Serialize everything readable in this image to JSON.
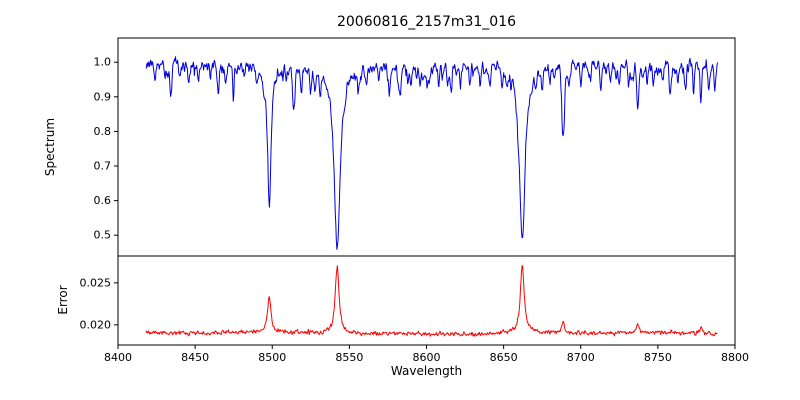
{
  "chart_data": {
    "type": "line",
    "title": "20060816_2157m31_016",
    "xlabel": "Wavelength",
    "grid": false,
    "legend": null,
    "xlim": [
      8400,
      8800
    ],
    "x_ticks": [
      8400,
      8450,
      8500,
      8550,
      8600,
      8650,
      8700,
      8750,
      8800
    ],
    "x_start": 8418,
    "x_end": 8789,
    "x_step": 0.35,
    "noise_seed": 20060816,
    "panels": [
      {
        "name": "spectrum",
        "ylabel": "Spectrum",
        "ylim": [
          0.44,
          1.07
        ],
        "y_ticks": [
          0.5,
          0.6,
          0.7,
          0.8,
          0.9,
          1.0
        ],
        "y_tick_decimals": 1,
        "line_color": "#0000dd",
        "model": {
          "sign": -1,
          "continuum": 0.99,
          "wave": [
            0.004,
            37,
            0.003,
            11.3
          ],
          "noise_sigma": 0.009,
          "micro_lines": {
            "count": 150,
            "max_depth": 0.05,
            "min_width": 0.3,
            "max_width": 0.7
          },
          "lines": [
            [
              8498.0,
              0.36,
              1.5,
              "lor"
            ],
            [
              8542.1,
              0.52,
              2.4,
              "lor"
            ],
            [
              8662.1,
              0.51,
              2.2,
              "lor"
            ],
            [
              8688.6,
              0.21,
              0.9
            ],
            [
              8424,
              0.05,
              0.5
            ],
            [
              8434,
              0.06,
              0.5
            ],
            [
              8440,
              0.035,
              0.45
            ],
            [
              8446,
              0.04,
              0.5
            ],
            [
              8452,
              0.05,
              0.5
            ],
            [
              8465,
              0.09,
              0.6
            ],
            [
              8470,
              0.05,
              0.5
            ],
            [
              8475,
              0.06,
              0.5
            ],
            [
              8482,
              0.035,
              0.45
            ],
            [
              8490,
              0.04,
              0.5
            ],
            [
              8514,
              0.11,
              0.65
            ],
            [
              8519,
              0.05,
              0.5
            ],
            [
              8525,
              0.06,
              0.5
            ],
            [
              8531,
              0.04,
              0.5
            ],
            [
              8556,
              0.045,
              0.5
            ],
            [
              8561,
              0.05,
              0.5
            ],
            [
              8569,
              0.04,
              0.5
            ],
            [
              8576,
              0.06,
              0.55
            ],
            [
              8583,
              0.07,
              0.55
            ],
            [
              8590,
              0.04,
              0.5
            ],
            [
              8596,
              0.05,
              0.5
            ],
            [
              8602,
              0.04,
              0.5
            ],
            [
              8608,
              0.06,
              0.5
            ],
            [
              8616,
              0.08,
              0.6
            ],
            [
              8622,
              0.05,
              0.5
            ],
            [
              8628,
              0.05,
              0.5
            ],
            [
              8635,
              0.04,
              0.5
            ],
            [
              8641,
              0.06,
              0.5
            ],
            [
              8649,
              0.05,
              0.5
            ],
            [
              8675,
              0.06,
              0.55
            ],
            [
              8680,
              0.04,
              0.5
            ],
            [
              8700,
              0.05,
              0.5
            ],
            [
              8706,
              0.04,
              0.5
            ],
            [
              8713,
              0.07,
              0.55
            ],
            [
              8719,
              0.04,
              0.5
            ],
            [
              8725,
              0.06,
              0.5
            ],
            [
              8731,
              0.04,
              0.5
            ],
            [
              8737,
              0.12,
              0.65
            ],
            [
              8743,
              0.05,
              0.5
            ],
            [
              8747,
              0.06,
              0.5
            ],
            [
              8753,
              0.04,
              0.5
            ],
            [
              8758,
              0.08,
              0.6
            ],
            [
              8763,
              0.05,
              0.5
            ],
            [
              8768,
              0.07,
              0.5
            ],
            [
              8773,
              0.06,
              0.5
            ],
            [
              8778,
              0.1,
              0.6
            ],
            [
              8783,
              0.06,
              0.5
            ],
            [
              8787,
              0.07,
              0.5
            ]
          ]
        }
      },
      {
        "name": "error",
        "ylabel": "Error",
        "ylim": [
          0.0176,
          0.0282
        ],
        "y_ticks": [
          0.02,
          0.025
        ],
        "y_tick_decimals": 3,
        "line_color": "#ff0000",
        "model": {
          "sign": 1,
          "continuum": 0.019,
          "wave": [
            8e-05,
            41,
            6e-05,
            13.1
          ],
          "noise_sigma": 0.00013,
          "lines": [
            [
              8498.0,
              0.0042,
              1.3,
              "lor"
            ],
            [
              8542.1,
              0.0082,
              1.5,
              "lor"
            ],
            [
              8662.1,
              0.0079,
              1.5,
              "lor"
            ],
            [
              8688.6,
              0.0012,
              1.0
            ],
            [
              8737.0,
              0.0008,
              1.0
            ],
            [
              8778.0,
              0.0008,
              1.0
            ]
          ]
        }
      }
    ]
  }
}
